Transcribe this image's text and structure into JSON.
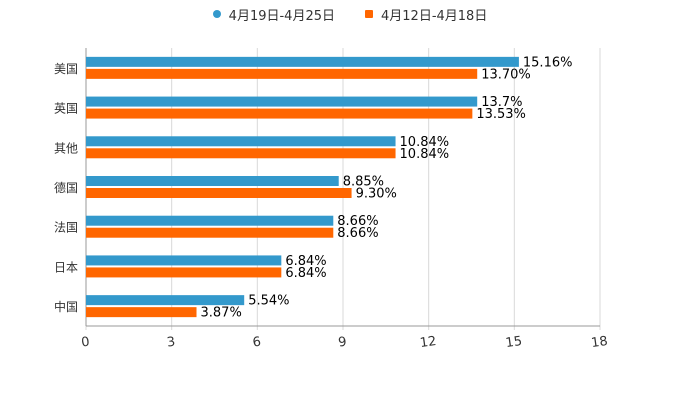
{
  "colors": {
    "series1": "#3399cc",
    "series2": "#ff6600",
    "grid": "#d9d9d9",
    "axis": "#999999",
    "text": "#333333"
  },
  "chart_data": {
    "type": "bar",
    "orientation": "horizontal",
    "title": "",
    "xlabel": "",
    "ylabel": "",
    "xlim": [
      0,
      18
    ],
    "x_ticks": [
      "0",
      "3",
      "6",
      "9",
      "12",
      "15",
      "18"
    ],
    "grid": "vertical",
    "legend_position": "top-center",
    "categories": [
      "美国",
      "英国",
      "其他",
      "德国",
      "法国",
      "日本",
      "中国"
    ],
    "series": [
      {
        "name": "4月19日-4月25日",
        "marker": "circle",
        "values": [
          15.16,
          13.7,
          10.84,
          8.85,
          8.66,
          6.84,
          5.54
        ],
        "labels": [
          "15.16%",
          "13.7%",
          "10.84%",
          "8.85%",
          "8.66%",
          "6.84%",
          "5.54%"
        ]
      },
      {
        "name": "4月12日-4月18日",
        "marker": "square",
        "values": [
          13.7,
          13.53,
          10.84,
          9.3,
          8.66,
          6.84,
          3.87
        ],
        "labels": [
          "13.70%",
          "13.53%",
          "10.84%",
          "9.30%",
          "8.66%",
          "6.84%",
          "3.87%"
        ]
      }
    ]
  }
}
